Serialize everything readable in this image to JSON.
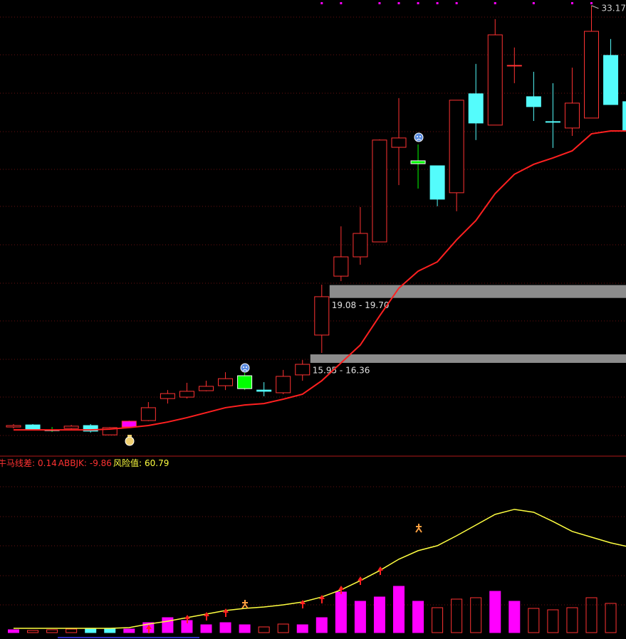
{
  "chart_data": [
    {
      "type": "candlestick",
      "open": [
        12.86,
        12.96,
        12.72,
        12.79,
        12.93,
        12.48,
        12.86,
        13.17,
        14.23,
        14.3,
        14.61,
        14.85,
        15.33,
        14.64,
        14.51,
        15.37,
        17.29,
        20.13,
        21.06,
        21.78,
        26.34,
        25.69,
        25.45,
        24.15,
        28.92,
        27.41,
        30.29,
        28.78,
        27.58,
        27.27,
        27.75,
        30.77,
        28.54
      ],
      "high": [
        13.0,
        13.0,
        12.86,
        12.96,
        13.0,
        12.86,
        13.17,
        14.06,
        14.64,
        14.99,
        15.09,
        15.5,
        15.47,
        15.02,
        15.61,
        16.09,
        19.72,
        22.53,
        23.46,
        26.72,
        28.71,
        26.48,
        25.45,
        28.61,
        30.36,
        32.52,
        31.15,
        29.98,
        29.43,
        30.18,
        33.17,
        31.56,
        28.54
      ],
      "low": [
        12.79,
        12.72,
        12.62,
        12.76,
        12.59,
        12.48,
        12.83,
        13.14,
        13.99,
        14.23,
        14.58,
        14.64,
        14.64,
        14.34,
        14.44,
        15.09,
        16.43,
        19.89,
        20.68,
        21.78,
        24.52,
        24.35,
        23.5,
        23.26,
        26.69,
        27.41,
        29.43,
        27.61,
        26.31,
        26.89,
        27.75,
        28.4,
        27.13
      ],
      "close": [
        12.93,
        12.76,
        12.72,
        12.9,
        12.66,
        12.83,
        13.14,
        13.79,
        14.47,
        14.58,
        14.82,
        15.19,
        14.71,
        14.58,
        15.3,
        15.88,
        19.14,
        21.06,
        22.19,
        26.69,
        26.79,
        25.55,
        23.84,
        28.61,
        27.51,
        31.76,
        30.29,
        28.3,
        27.58,
        28.47,
        31.93,
        28.4,
        27.13
      ],
      "colors": [
        "#ff3232",
        "#54fcfc",
        "#00ff00",
        "#ff3232",
        "#54fcfc",
        "#ff3232",
        "#ff00ff",
        "#ff3232",
        "#ff3232",
        "#ff3232",
        "#ff3232",
        "#ff3232",
        "#00ff00",
        "#54fcfc",
        "#ff3232",
        "#ff3232",
        "#ff3232",
        "#ff3232",
        "#ff3232",
        "#ff3232",
        "#ff3232",
        "#00ff00",
        "#54fcfc",
        "#ff3232",
        "#54fcfc",
        "#ff3232",
        "#ff3232",
        "#54fcfc",
        "#54fcfc",
        "#ff3232",
        "#ff3232",
        "#54fcfc",
        "#54fcfc"
      ],
      "ma": {
        "color": "#ff2020",
        "values": [
          12.72,
          12.72,
          12.72,
          12.72,
          12.72,
          12.76,
          12.83,
          12.93,
          13.1,
          13.31,
          13.55,
          13.79,
          13.92,
          13.99,
          14.2,
          14.44,
          15.09,
          15.95,
          16.81,
          18.21,
          19.55,
          20.37,
          20.82,
          21.88,
          22.81,
          24.11,
          25.04,
          25.52,
          25.83,
          26.17,
          26.99,
          27.13,
          27.13
        ]
      },
      "zones": [
        {
          "label": "19.08 - 19.70",
          "low": 19.08,
          "high": 19.7,
          "start": 16
        },
        {
          "label": "15.95 - 16.36",
          "low": 15.95,
          "high": 16.36,
          "start": 15
        }
      ],
      "top_markers": [
        16,
        17,
        19,
        20,
        21,
        22,
        23,
        25,
        27,
        29,
        30
      ],
      "ylim": [
        11.49,
        33.44
      ]
    },
    {
      "type": "indicator",
      "legend": [
        {
          "name": "牛马线差:",
          "value": 0.14,
          "color": "#ff3232"
        },
        {
          "name": "ABBJK:",
          "value": -9.86,
          "color": "#ff3232"
        },
        {
          "name": "风险值:",
          "value": 60.79,
          "color": "#ffff40"
        }
      ],
      "bars": {
        "values": [
          2.03,
          1.52,
          2.03,
          2.53,
          2.53,
          2.53,
          2.53,
          7.09,
          10.64,
          8.61,
          5.57,
          7.09,
          5.57,
          4.05,
          6.08,
          5.57,
          10.64,
          28.88,
          22.29,
          25.33,
          32.93,
          22.29,
          17.73,
          23.81,
          24.82,
          29.38,
          22.29,
          17.22,
          16.21,
          17.73,
          24.82,
          20.77,
          null
        ],
        "colors": [
          "#ff00ff",
          "#ff3232",
          "#ff3232",
          "#ff3232",
          "#54fcfc",
          "#54fcfc",
          "#ff00ff",
          "#ff00ff",
          "#ff00ff",
          "#ff00ff",
          "#ff00ff",
          "#ff00ff",
          "#ff00ff",
          "#ff3232",
          "#ff3232",
          "#ff00ff",
          "#ff00ff",
          "#ff00ff",
          "#ff00ff",
          "#ff00ff",
          "#ff00ff",
          "#ff00ff",
          "#ff3232",
          "#ff3232",
          "#ff3232",
          "#ff00ff",
          "#ff00ff",
          "#ff3232",
          "#ff3232",
          "#ff3232",
          "#ff3232",
          "#ff3232",
          "#ff3232"
        ]
      },
      "line": {
        "color": "#ffff40",
        "values": [
          3.04,
          3.04,
          3.04,
          3.04,
          3.04,
          3.04,
          3.55,
          6.08,
          8.11,
          10.64,
          13.17,
          15.7,
          17.22,
          18.24,
          19.76,
          21.78,
          25.33,
          30.4,
          36.98,
          44.07,
          52.18,
          58.26,
          61.8,
          68.89,
          76.49,
          84.09,
          87.64,
          85.61,
          79.03,
          71.94,
          67.88,
          63.83,
          60.79
        ]
      },
      "ylim": [
        -0.5,
        125
      ]
    }
  ]
}
